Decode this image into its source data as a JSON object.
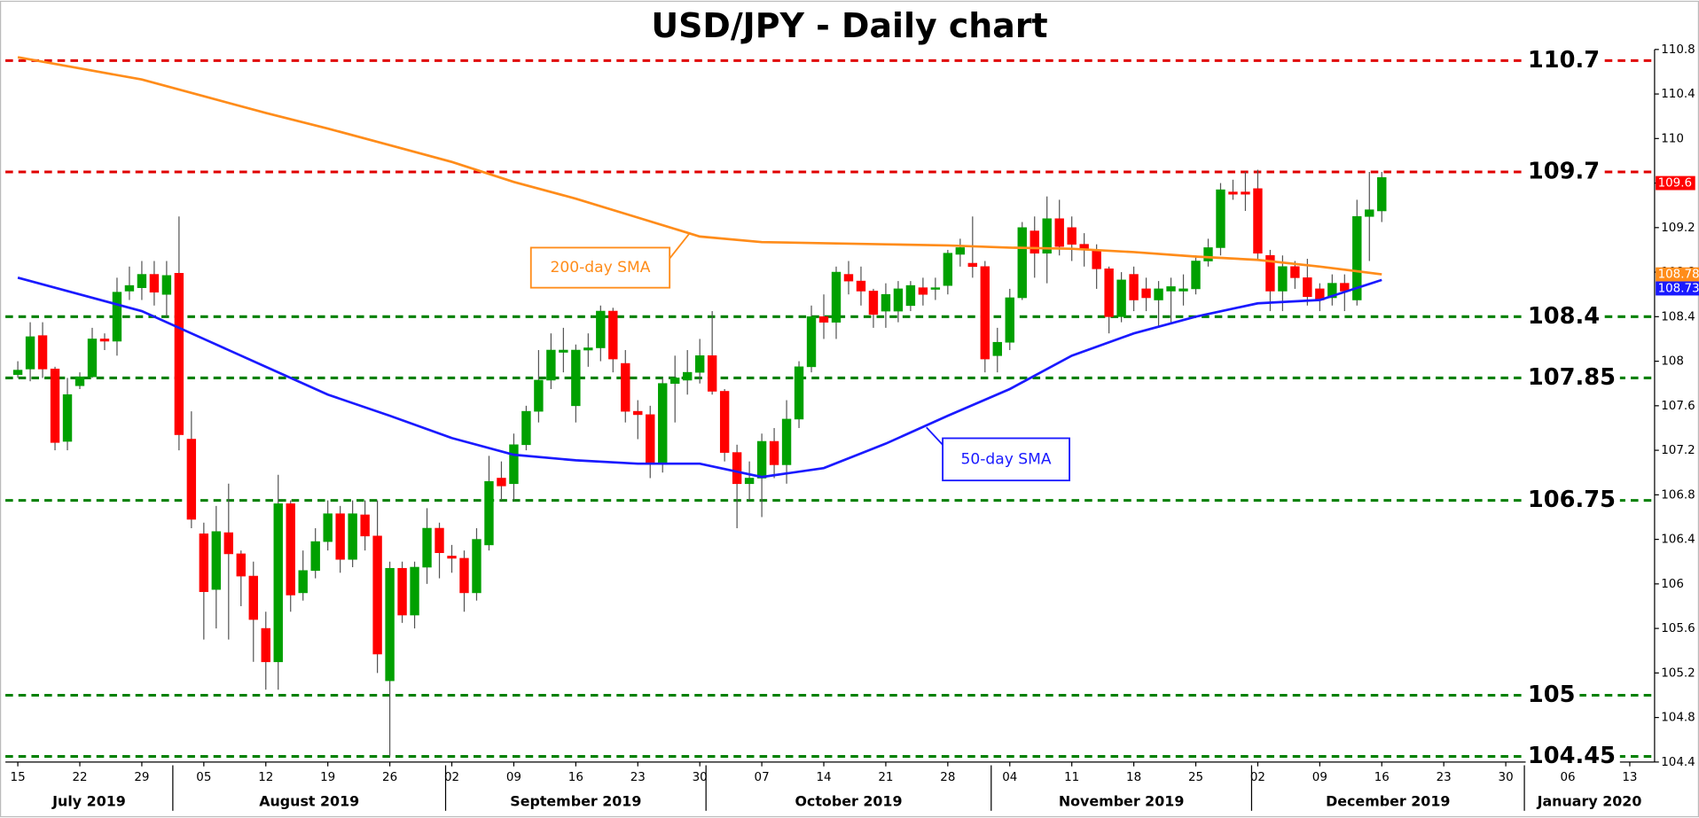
{
  "chart_data": {
    "type": "candlestick",
    "title": "USD/JPY - Daily chart",
    "categories": [
      "2019-07-15",
      "2019-07-16",
      "2019-07-17",
      "2019-07-18",
      "2019-07-19",
      "2019-07-22",
      "2019-07-23",
      "2019-07-24",
      "2019-07-25",
      "2019-07-26",
      "2019-07-29",
      "2019-07-30",
      "2019-07-31",
      "2019-08-01",
      "2019-08-02",
      "2019-08-05",
      "2019-08-06",
      "2019-08-07",
      "2019-08-08",
      "2019-08-09",
      "2019-08-12",
      "2019-08-13",
      "2019-08-14",
      "2019-08-15",
      "2019-08-16",
      "2019-08-19",
      "2019-08-20",
      "2019-08-21",
      "2019-08-22",
      "2019-08-23",
      "2019-08-26",
      "2019-08-27",
      "2019-08-28",
      "2019-08-29",
      "2019-08-30",
      "2019-09-02",
      "2019-09-03",
      "2019-09-04",
      "2019-09-05",
      "2019-09-06",
      "2019-09-09",
      "2019-09-10",
      "2019-09-11",
      "2019-09-12",
      "2019-09-13",
      "2019-09-16",
      "2019-09-17",
      "2019-09-18",
      "2019-09-19",
      "2019-09-20",
      "2019-09-23",
      "2019-09-24",
      "2019-09-25",
      "2019-09-26",
      "2019-09-27",
      "2019-09-30",
      "2019-10-01",
      "2019-10-02",
      "2019-10-03",
      "2019-10-04",
      "2019-10-07",
      "2019-10-08",
      "2019-10-09",
      "2019-10-10",
      "2019-10-11",
      "2019-10-14",
      "2019-10-15",
      "2019-10-16",
      "2019-10-17",
      "2019-10-18",
      "2019-10-21",
      "2019-10-22",
      "2019-10-23",
      "2019-10-24",
      "2019-10-25",
      "2019-10-28",
      "2019-10-29",
      "2019-10-30",
      "2019-10-31",
      "2019-11-01",
      "2019-11-04",
      "2019-11-05",
      "2019-11-06",
      "2019-11-07",
      "2019-11-08",
      "2019-11-11",
      "2019-11-12",
      "2019-11-13",
      "2019-11-14",
      "2019-11-15",
      "2019-11-18",
      "2019-11-19",
      "2019-11-20",
      "2019-11-21",
      "2019-11-22",
      "2019-11-25",
      "2019-11-26",
      "2019-11-27",
      "2019-11-28",
      "2019-11-29",
      "2019-12-02",
      "2019-12-03",
      "2019-12-04",
      "2019-12-05",
      "2019-12-06",
      "2019-12-09",
      "2019-12-10",
      "2019-12-11",
      "2019-12-12",
      "2019-12-13",
      "2019-12-16"
    ],
    "open": [
      107.88,
      107.93,
      108.23,
      107.93,
      107.28,
      107.78,
      107.86,
      108.2,
      108.18,
      108.63,
      108.66,
      108.78,
      108.6,
      108.79,
      107.3,
      106.45,
      105.95,
      106.46,
      106.27,
      106.07,
      105.6,
      105.3,
      106.72,
      105.92,
      106.12,
      106.38,
      106.63,
      106.22,
      106.62,
      106.43,
      105.13,
      106.14,
      105.72,
      106.15,
      106.5,
      106.25,
      106.23,
      105.92,
      106.35,
      106.95,
      106.9,
      107.25,
      107.55,
      107.83,
      108.08,
      107.6,
      108.1,
      108.12,
      108.45,
      107.98,
      107.55,
      107.52,
      107.08,
      107.8,
      107.83,
      107.9,
      108.05,
      107.73,
      107.18,
      106.9,
      106.95,
      107.28,
      107.07,
      107.48,
      107.95,
      108.4,
      108.35,
      108.78,
      108.72,
      108.63,
      108.45,
      108.45,
      108.5,
      108.66,
      108.65,
      108.68,
      108.96,
      108.88,
      108.85,
      108.05,
      108.17,
      108.57,
      109.17,
      108.97,
      109.28,
      109.2,
      109.05,
      109.0,
      108.83,
      108.4,
      108.78,
      108.65,
      108.55,
      108.63,
      108.63,
      108.65,
      108.9,
      109.02,
      109.52,
      109.52,
      109.55,
      108.95,
      108.63,
      108.85,
      108.75,
      108.65,
      108.57,
      108.7,
      108.55,
      109.3,
      109.35
    ],
    "high": [
      108.0,
      108.35,
      108.35,
      107.95,
      107.85,
      107.9,
      108.3,
      108.25,
      108.75,
      108.85,
      108.9,
      108.9,
      108.9,
      109.3,
      107.55,
      106.55,
      106.7,
      106.9,
      106.3,
      106.2,
      105.75,
      106.98,
      106.75,
      106.3,
      106.5,
      106.75,
      106.7,
      106.75,
      106.75,
      106.75,
      106.2,
      106.2,
      106.2,
      106.68,
      106.55,
      106.35,
      106.3,
      106.5,
      107.15,
      107.1,
      107.35,
      107.6,
      108.1,
      108.25,
      108.3,
      108.15,
      108.25,
      108.5,
      108.48,
      108.1,
      107.65,
      107.6,
      107.85,
      108.05,
      108.1,
      108.2,
      108.45,
      107.75,
      107.25,
      107.1,
      107.35,
      107.4,
      107.65,
      108.0,
      108.5,
      108.6,
      108.85,
      108.9,
      108.85,
      108.65,
      108.7,
      108.72,
      108.72,
      108.75,
      108.75,
      109.0,
      109.1,
      109.3,
      108.9,
      108.3,
      108.65,
      109.25,
      109.3,
      109.48,
      109.45,
      109.3,
      109.15,
      109.05,
      108.85,
      108.8,
      108.85,
      108.75,
      108.72,
      108.75,
      108.78,
      108.95,
      109.1,
      109.6,
      109.63,
      109.7,
      109.72,
      109.0,
      108.95,
      108.9,
      108.92,
      108.7,
      108.78,
      108.78,
      109.45,
      109.7,
      109.7
    ],
    "low": [
      107.85,
      107.82,
      107.85,
      107.2,
      107.2,
      107.75,
      107.85,
      108.1,
      108.05,
      108.55,
      108.55,
      108.5,
      108.4,
      107.2,
      106.5,
      105.5,
      105.6,
      105.5,
      105.8,
      105.3,
      105.05,
      105.05,
      105.75,
      105.85,
      106.05,
      106.3,
      106.1,
      106.15,
      106.3,
      105.2,
      104.45,
      105.65,
      105.6,
      106.0,
      106.05,
      106.1,
      105.75,
      105.85,
      106.3,
      106.75,
      106.75,
      107.2,
      107.45,
      107.75,
      107.9,
      107.45,
      107.95,
      108.0,
      107.9,
      107.45,
      107.3,
      106.95,
      107.0,
      107.45,
      107.7,
      107.8,
      107.7,
      107.1,
      106.5,
      106.75,
      106.6,
      106.95,
      106.9,
      107.4,
      107.9,
      108.2,
      108.2,
      108.6,
      108.5,
      108.3,
      108.3,
      108.35,
      108.45,
      108.5,
      108.55,
      108.6,
      108.85,
      108.75,
      107.9,
      107.9,
      108.1,
      108.55,
      108.75,
      108.7,
      108.95,
      108.9,
      108.85,
      108.65,
      108.25,
      108.35,
      108.45,
      108.45,
      108.3,
      108.35,
      108.5,
      108.6,
      108.85,
      108.95,
      109.45,
      109.35,
      108.9,
      108.45,
      108.45,
      108.65,
      108.5,
      108.45,
      108.5,
      108.45,
      108.5,
      108.9,
      109.25
    ],
    "close": [
      107.92,
      108.22,
      107.93,
      107.27,
      107.7,
      107.86,
      108.2,
      108.18,
      108.62,
      108.68,
      108.78,
      108.62,
      108.77,
      107.34,
      106.58,
      105.93,
      106.47,
      106.27,
      106.07,
      105.68,
      105.3,
      106.72,
      105.9,
      106.12,
      106.38,
      106.63,
      106.22,
      106.63,
      106.43,
      105.37,
      106.14,
      105.72,
      106.15,
      106.5,
      106.28,
      106.23,
      105.92,
      106.4,
      106.92,
      106.88,
      107.25,
      107.55,
      107.83,
      108.1,
      108.1,
      108.1,
      108.12,
      108.45,
      108.02,
      107.55,
      107.52,
      107.08,
      107.8,
      107.85,
      107.9,
      108.05,
      107.73,
      107.18,
      106.9,
      106.95,
      107.28,
      107.07,
      107.48,
      107.95,
      108.4,
      108.35,
      108.8,
      108.72,
      108.63,
      108.42,
      108.6,
      108.65,
      108.68,
      108.6,
      108.66,
      108.97,
      109.02,
      108.85,
      108.02,
      108.17,
      108.57,
      109.2,
      108.97,
      109.28,
      109.03,
      109.05,
      109.0,
      108.83,
      108.4,
      108.73,
      108.55,
      108.57,
      108.65,
      108.67,
      108.65,
      108.9,
      109.02,
      109.54,
      109.5,
      109.5,
      108.97,
      108.63,
      108.85,
      108.75,
      108.58,
      108.55,
      108.7,
      108.63,
      109.3,
      109.36,
      109.65
    ],
    "up_color": "#00a000",
    "down_color": "#ff0000",
    "lines": [
      {
        "name": "200-day SMA",
        "color": "#ff8c1a",
        "x": [
          "2019-07-15",
          "2019-07-29",
          "2019-08-05",
          "2019-08-12",
          "2019-08-19",
          "2019-08-26",
          "2019-09-02",
          "2019-09-09",
          "2019-09-16",
          "2019-09-23",
          "2019-09-30",
          "2019-10-07",
          "2019-10-14",
          "2019-10-21",
          "2019-10-28",
          "2019-11-04",
          "2019-11-11",
          "2019-11-18",
          "2019-11-25",
          "2019-12-02",
          "2019-12-09",
          "2019-12-16"
        ],
        "values": [
          110.73,
          110.53,
          110.38,
          110.23,
          110.09,
          109.94,
          109.79,
          109.61,
          109.46,
          109.29,
          109.12,
          109.07,
          109.06,
          109.05,
          109.04,
          109.02,
          109.01,
          108.98,
          108.94,
          108.91,
          108.85,
          108.78
        ]
      },
      {
        "name": "50-day SMA",
        "color": "#1a1aff",
        "x": [
          "2019-07-15",
          "2019-07-22",
          "2019-07-29",
          "2019-08-05",
          "2019-08-12",
          "2019-08-19",
          "2019-08-26",
          "2019-09-02",
          "2019-09-09",
          "2019-09-16",
          "2019-09-23",
          "2019-09-30",
          "2019-10-07",
          "2019-10-14",
          "2019-10-21",
          "2019-10-28",
          "2019-11-04",
          "2019-11-11",
          "2019-11-18",
          "2019-11-25",
          "2019-12-02",
          "2019-12-09",
          "2019-12-16"
        ],
        "values": [
          108.75,
          108.6,
          108.45,
          108.2,
          107.95,
          107.7,
          107.51,
          107.31,
          107.16,
          107.11,
          107.08,
          107.08,
          106.96,
          107.04,
          107.26,
          107.51,
          107.75,
          108.05,
          108.25,
          108.4,
          108.52,
          108.55,
          108.73
        ]
      }
    ],
    "levels": [
      {
        "value": 110.7,
        "color": "#e00000"
      },
      {
        "value": 109.7,
        "color": "#e00000"
      },
      {
        "value": 108.4,
        "color": "#008000"
      },
      {
        "value": 107.85,
        "color": "#008000"
      },
      {
        "value": 106.75,
        "color": "#008000"
      },
      {
        "value": 105,
        "color": "#008000"
      },
      {
        "value": 104.45,
        "color": "#008000"
      }
    ],
    "last_price": 109.6,
    "last_price_color": "#ff0000",
    "ylim": [
      104.4,
      110.8
    ],
    "yticks": [
      104.4,
      104.8,
      105.2,
      105.6,
      106,
      106.4,
      106.8,
      107.2,
      107.6,
      108,
      108.4,
      108.8,
      109.2,
      109.6,
      110,
      110.4,
      110.8
    ],
    "xlim": [
      "2019-07-12",
      "2020-01-15"
    ],
    "xticks": [
      {
        "value": "2019-07-15",
        "label": "15"
      },
      {
        "value": "2019-07-22",
        "label": "22"
      },
      {
        "value": "2019-07-29",
        "label": "29"
      },
      {
        "value": "2019-08-05",
        "label": "05"
      },
      {
        "value": "2019-08-12",
        "label": "12"
      },
      {
        "value": "2019-08-19",
        "label": "19"
      },
      {
        "value": "2019-08-26",
        "label": "26"
      },
      {
        "value": "2019-09-02",
        "label": "02"
      },
      {
        "value": "2019-09-09",
        "label": "09"
      },
      {
        "value": "2019-09-16",
        "label": "16"
      },
      {
        "value": "2019-09-23",
        "label": "23"
      },
      {
        "value": "2019-09-30",
        "label": "30"
      },
      {
        "value": "2019-10-07",
        "label": "07"
      },
      {
        "value": "2019-10-14",
        "label": "14"
      },
      {
        "value": "2019-10-21",
        "label": "21"
      },
      {
        "value": "2019-10-28",
        "label": "28"
      },
      {
        "value": "2019-11-04",
        "label": "04"
      },
      {
        "value": "2019-11-11",
        "label": "11"
      },
      {
        "value": "2019-11-18",
        "label": "18"
      },
      {
        "value": "2019-11-25",
        "label": "25"
      },
      {
        "value": "2019-12-02",
        "label": "02"
      },
      {
        "value": "2019-12-09",
        "label": "09"
      },
      {
        "value": "2019-12-16",
        "label": "16"
      },
      {
        "value": "2019-12-23",
        "label": "23"
      },
      {
        "value": "2019-12-30",
        "label": "30"
      },
      {
        "value": "2020-01-06",
        "label": "06"
      },
      {
        "value": "2020-01-13",
        "label": "13"
      }
    ],
    "months": [
      {
        "label": "July 2019",
        "start": "2019-07-01"
      },
      {
        "label": "August 2019",
        "start": "2019-08-01"
      },
      {
        "label": "September 2019",
        "start": "2019-09-02"
      },
      {
        "label": "October 2019",
        "start": "2019-10-01"
      },
      {
        "label": "November 2019",
        "start": "2019-11-01"
      },
      {
        "label": "December 2019",
        "start": "2019-12-02"
      },
      {
        "label": "January 2020",
        "start": "2020-01-01"
      }
    ]
  }
}
